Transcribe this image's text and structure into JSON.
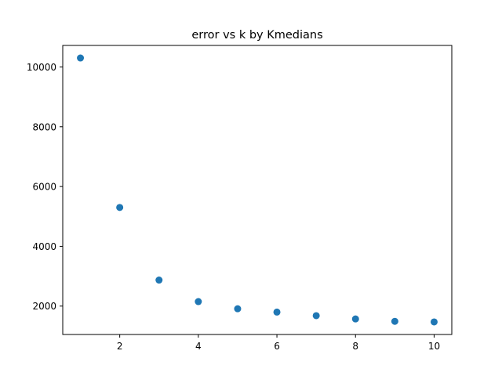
{
  "chart_data": {
    "type": "scatter",
    "title": "error vs k by Kmedians",
    "xlabel": "",
    "ylabel": "",
    "x": [
      1,
      2,
      3,
      4,
      5,
      6,
      7,
      8,
      9,
      10
    ],
    "y": [
      10300,
      5300,
      2870,
      2150,
      1910,
      1800,
      1680,
      1570,
      1490,
      1470
    ],
    "xlim": [
      0.55,
      10.45
    ],
    "ylim": [
      1050,
      10720
    ],
    "xticks": [
      2,
      4,
      6,
      8,
      10
    ],
    "yticks": [
      2000,
      4000,
      6000,
      8000,
      10000
    ],
    "grid": false,
    "legend": "none",
    "marker_color": "#1f77b4"
  }
}
